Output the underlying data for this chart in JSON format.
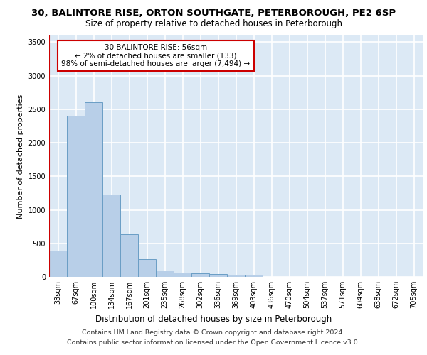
{
  "title_line1": "30, BALINTORE RISE, ORTON SOUTHGATE, PETERBOROUGH, PE2 6SP",
  "title_line2": "Size of property relative to detached houses in Peterborough",
  "xlabel": "Distribution of detached houses by size in Peterborough",
  "ylabel": "Number of detached properties",
  "categories": [
    "33sqm",
    "67sqm",
    "100sqm",
    "134sqm",
    "167sqm",
    "201sqm",
    "235sqm",
    "268sqm",
    "302sqm",
    "336sqm",
    "369sqm",
    "403sqm",
    "436sqm",
    "470sqm",
    "504sqm",
    "537sqm",
    "571sqm",
    "604sqm",
    "638sqm",
    "672sqm",
    "705sqm"
  ],
  "values": [
    390,
    2400,
    2600,
    1230,
    640,
    260,
    100,
    60,
    55,
    45,
    35,
    30,
    0,
    0,
    0,
    0,
    0,
    0,
    0,
    0,
    0
  ],
  "bar_color": "#b8cfe8",
  "bar_edge_color": "#6a9ec5",
  "vline_color": "#cc0000",
  "annotation_text": "30 BALINTORE RISE: 56sqm\n← 2% of detached houses are smaller (133)\n98% of semi-detached houses are larger (7,494) →",
  "annotation_box_facecolor": "#ffffff",
  "annotation_box_edgecolor": "#cc0000",
  "ylim": [
    0,
    3600
  ],
  "yticks": [
    0,
    500,
    1000,
    1500,
    2000,
    2500,
    3000,
    3500
  ],
  "plot_bg_color": "#dce9f5",
  "grid_color": "#ffffff",
  "footer_line1": "Contains HM Land Registry data © Crown copyright and database right 2024.",
  "footer_line2": "Contains public sector information licensed under the Open Government Licence v3.0.",
  "title_fontsize": 9.5,
  "subtitle_fontsize": 8.5,
  "ylabel_fontsize": 8,
  "xlabel_fontsize": 8.5,
  "tick_fontsize": 7,
  "annotation_fontsize": 7.5,
  "footer_fontsize": 6.8
}
